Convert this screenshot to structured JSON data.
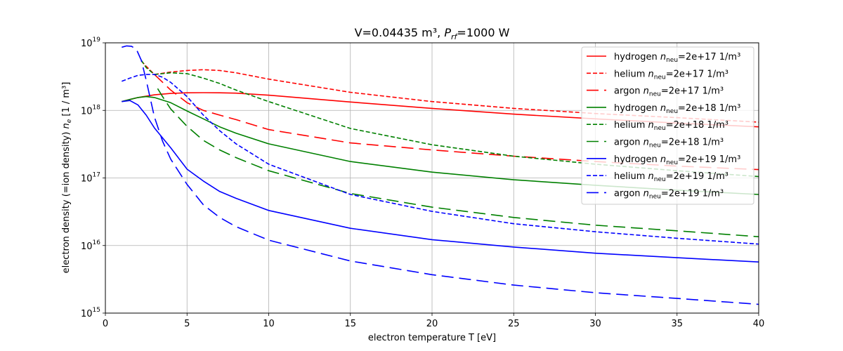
{
  "chart_data": {
    "type": "line",
    "title": {
      "prefix": "V=0.04435 m³, ",
      "p_symbol": "P",
      "p_subscript": "rf",
      "suffix": "=1000 W"
    },
    "xlabel": "electron temperature T [eV]",
    "ylabel": {
      "prefix": "electron density (=ion density) ",
      "n_symbol": "n",
      "n_subscript": "e",
      "suffix": " [1 / m³]"
    },
    "xlim": [
      0,
      40
    ],
    "ylim": [
      1000000000000000.0,
      1e+19
    ],
    "yscale": "log",
    "grid": true,
    "legend_position": "top-right",
    "x_ticks": [
      0,
      5,
      10,
      15,
      20,
      25,
      30,
      35,
      40
    ],
    "x_tick_labels": [
      "0",
      "5",
      "10",
      "15",
      "20",
      "25",
      "30",
      "35",
      "40"
    ],
    "y_ticks": [
      {
        "value": 1000000000000000.0,
        "base": "10",
        "exp": "15"
      },
      {
        "value": 1e+16,
        "base": "10",
        "exp": "16"
      },
      {
        "value": 1e+17,
        "base": "10",
        "exp": "17"
      },
      {
        "value": 1e+18,
        "base": "10",
        "exp": "18"
      },
      {
        "value": 1e+19,
        "base": "10",
        "exp": "19"
      }
    ],
    "series": [
      {
        "name": "hydrogen n_neu=2e+17 1/m³",
        "gas": "hydrogen",
        "n_value": "=2e+17 1/m³",
        "color": "#ff0000",
        "dash": "solid",
        "x": [
          1,
          1.5,
          2,
          3,
          4,
          5,
          6,
          7,
          8,
          10,
          15,
          20,
          25,
          30,
          35,
          40
        ],
        "y": [
          1.35e+18,
          1.45e+18,
          1.55e+18,
          1.7e+18,
          1.78e+18,
          1.82e+18,
          1.83e+18,
          1.82e+18,
          1.8e+18,
          1.68e+18,
          1.33e+18,
          1.07e+18,
          8.8e+17,
          7.5e+17,
          6.5e+17,
          5.7e+17
        ]
      },
      {
        "name": "helium n_neu=2e+17 1/m³",
        "gas": "helium",
        "n_value": "=2e+17 1/m³",
        "color": "#ff0000",
        "dash": "dashed",
        "x": [
          2.2,
          2.5,
          3,
          4,
          5,
          6,
          7,
          8,
          10,
          15,
          20,
          25,
          30,
          35,
          40
        ],
        "y": [
          5.4e+18,
          4.5e+18,
          3.4e+18,
          3.7e+18,
          3.9e+18,
          4e+18,
          3.9e+18,
          3.6e+18,
          2.9e+18,
          1.85e+18,
          1.35e+18,
          1.07e+18,
          9e+17,
          7.8e+17,
          6.7e+17
        ]
      },
      {
        "name": "argon n_neu=2e+17 1/m³",
        "gas": "argon",
        "n_value": "=2e+17 1/m³",
        "color": "#ff0000",
        "dash": "longdash",
        "x": [
          3,
          4,
          5,
          6,
          7,
          8,
          10,
          15,
          20,
          25,
          30,
          35,
          40
        ],
        "y": [
          3.4e+18,
          2e+18,
          1.3e+18,
          1e+18,
          8.5e+17,
          7.3e+17,
          5.2e+17,
          3.3e+17,
          2.6e+17,
          2.1e+17,
          1.75e+17,
          1.5e+17,
          1.33e+17
        ]
      },
      {
        "name": "hydrogen n_neu=2e+18 1/m³",
        "gas": "hydrogen",
        "n_value": "=2e+18 1/m³",
        "color": "#008000",
        "dash": "solid",
        "x": [
          1,
          1.5,
          2,
          2.5,
          3,
          4,
          5,
          6,
          7,
          8,
          10,
          15,
          20,
          25,
          30,
          35,
          40
        ],
        "y": [
          1.35e+18,
          1.45e+18,
          1.55e+18,
          1.6e+18,
          1.55e+18,
          1.3e+18,
          9.8e+17,
          7.5e+17,
          5.7e+17,
          4.6e+17,
          3.2e+17,
          1.75e+17,
          1.22e+17,
          9.4e+16,
          7.8e+16,
          6.6e+16,
          5.7e+16
        ]
      },
      {
        "name": "helium n_neu=2e+18 1/m³",
        "gas": "helium",
        "n_value": "=2e+18 1/m³",
        "color": "#008000",
        "dash": "dashed",
        "x": [
          2.2,
          2.5,
          3,
          4,
          5,
          6,
          7,
          8,
          10,
          15,
          20,
          25,
          30,
          35,
          40
        ],
        "y": [
          5.5e+18,
          4.3e+18,
          3.4e+18,
          3.6e+18,
          3.5e+18,
          3e+18,
          2.5e+18,
          2e+18,
          1.35e+18,
          5.4e+17,
          3.1e+17,
          2.1e+17,
          1.6e+17,
          1.28e+17,
          1.05e+17
        ]
      },
      {
        "name": "argon n_neu=2e+18 1/m³",
        "gas": "argon",
        "n_value": "=2e+18 1/m³",
        "color": "#008000",
        "dash": "longdash",
        "x": [
          3.2,
          3.5,
          4,
          5,
          6,
          7,
          8,
          10,
          15,
          20,
          25,
          30,
          35,
          40
        ],
        "y": [
          2.1e+18,
          1.6e+18,
          1.05e+18,
          5.8e+17,
          3.6e+17,
          2.6e+17,
          2e+17,
          1.28e+17,
          5.9e+16,
          3.7e+16,
          2.6e+16,
          2e+16,
          1.65e+16,
          1.35e+16
        ]
      },
      {
        "name": "hydrogen n_neu=2e+19 1/m³",
        "gas": "hydrogen",
        "n_value": "=2e+19 1/m³",
        "color": "#0000ff",
        "dash": "solid",
        "x": [
          1,
          1.5,
          2,
          2.5,
          3,
          4,
          5,
          6,
          7,
          8,
          10,
          15,
          20,
          25,
          30,
          35,
          40
        ],
        "y": [
          1.35e+18,
          1.4e+18,
          1.2e+18,
          8.5e+17,
          5.5e+17,
          2.8e+17,
          1.35e+17,
          9e+16,
          6.3e+16,
          5e+16,
          3.3e+16,
          1.8e+16,
          1.22e+16,
          9500000000000000.0,
          7700000000000000.0,
          6600000000000000.0,
          5700000000000000.0
        ]
      },
      {
        "name": "helium n_neu=2e+19 1/m³",
        "gas": "helium",
        "n_value": "=2e+19 1/m³",
        "color": "#0000ff",
        "dash": "dashed",
        "x": [
          1,
          1.5,
          2,
          2.5,
          3,
          3.5,
          4,
          5,
          6,
          7,
          8,
          10,
          15,
          20,
          25,
          30,
          35,
          40
        ],
        "y": [
          2.7e+18,
          3e+18,
          3.3e+18,
          3.4e+18,
          3.4e+18,
          3.1e+18,
          2.6e+18,
          1.6e+18,
          8.5e+17,
          5e+17,
          3.2e+17,
          1.6e+17,
          5.7e+16,
          3.2e+16,
          2.1e+16,
          1.6e+16,
          1.28e+16,
          1.05e+16
        ]
      },
      {
        "name": "argon n_neu=2e+19 1/m³",
        "gas": "argon",
        "n_value": "=2e+19 1/m³",
        "color": "#0000ff",
        "dash": "longdash",
        "x": [
          1,
          1.3,
          1.6,
          1.9,
          2.2,
          2.5,
          3,
          3.5,
          4,
          5,
          6,
          7,
          8,
          10,
          15,
          20,
          25,
          30,
          35,
          40
        ],
        "y": [
          8.6e+18,
          9e+18,
          8.9e+18,
          8e+18,
          5.5e+18,
          2.8e+18,
          8e+17,
          3.5e+17,
          1.9e+17,
          8e+16,
          4e+16,
          2.6e+16,
          1.9e+16,
          1.2e+16,
          5900000000000000.0,
          3700000000000000.0,
          2600000000000000.0,
          2000000000000000.0,
          1650000000000000.0,
          1350000000000000.0
        ]
      }
    ]
  }
}
